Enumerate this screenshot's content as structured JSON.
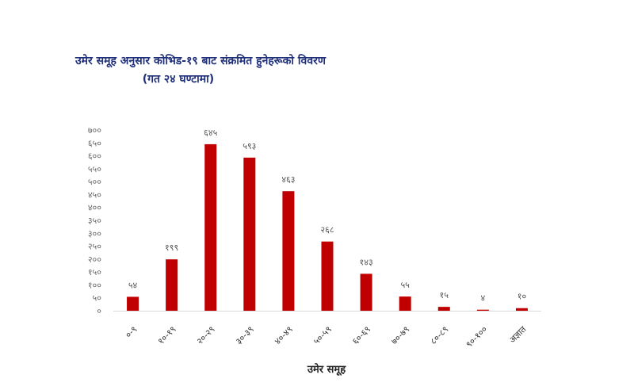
{
  "chart_data": {
    "type": "bar",
    "title": "उमेर समूह अनुसार कोभिड-१९ बाट संक्रमित हुनेहरूको विवरण",
    "subtitle": "(गत २४ घण्टामा)",
    "xlabel": "उमेर समूह",
    "ylabel": "",
    "ylim": [
      0,
      700
    ],
    "yticks": [
      0,
      50,
      100,
      150,
      200,
      250,
      300,
      350,
      400,
      450,
      500,
      550,
      600,
      650,
      700
    ],
    "ytick_labels": [
      "०",
      "५०",
      "१००",
      "१५०",
      "२००",
      "२५०",
      "३००",
      "३५०",
      "४००",
      "४५०",
      "५००",
      "५५०",
      "६००",
      "६५०",
      "७००"
    ],
    "categories": [
      "०-९",
      "१०-१९",
      "२०-२९",
      "३०-३९",
      "४०-४९",
      "५०-५९",
      "६०-६९",
      "७०-७९",
      "८०-८९",
      "९०-१००",
      "अज्ञात"
    ],
    "values": [
      54,
      199,
      645,
      593,
      463,
      268,
      143,
      55,
      15,
      4,
      10
    ],
    "value_labels": [
      "५४",
      "१९९",
      "६४५",
      "५९३",
      "४६३",
      "२६८",
      "१४३",
      "५५",
      "१५",
      "४",
      "१०"
    ],
    "bar_color": "#c00000",
    "grid": false,
    "legend": "none"
  },
  "colors": {
    "title": "#1f2f7a",
    "bar": "#c00000",
    "axis": "#d9d9d9"
  }
}
